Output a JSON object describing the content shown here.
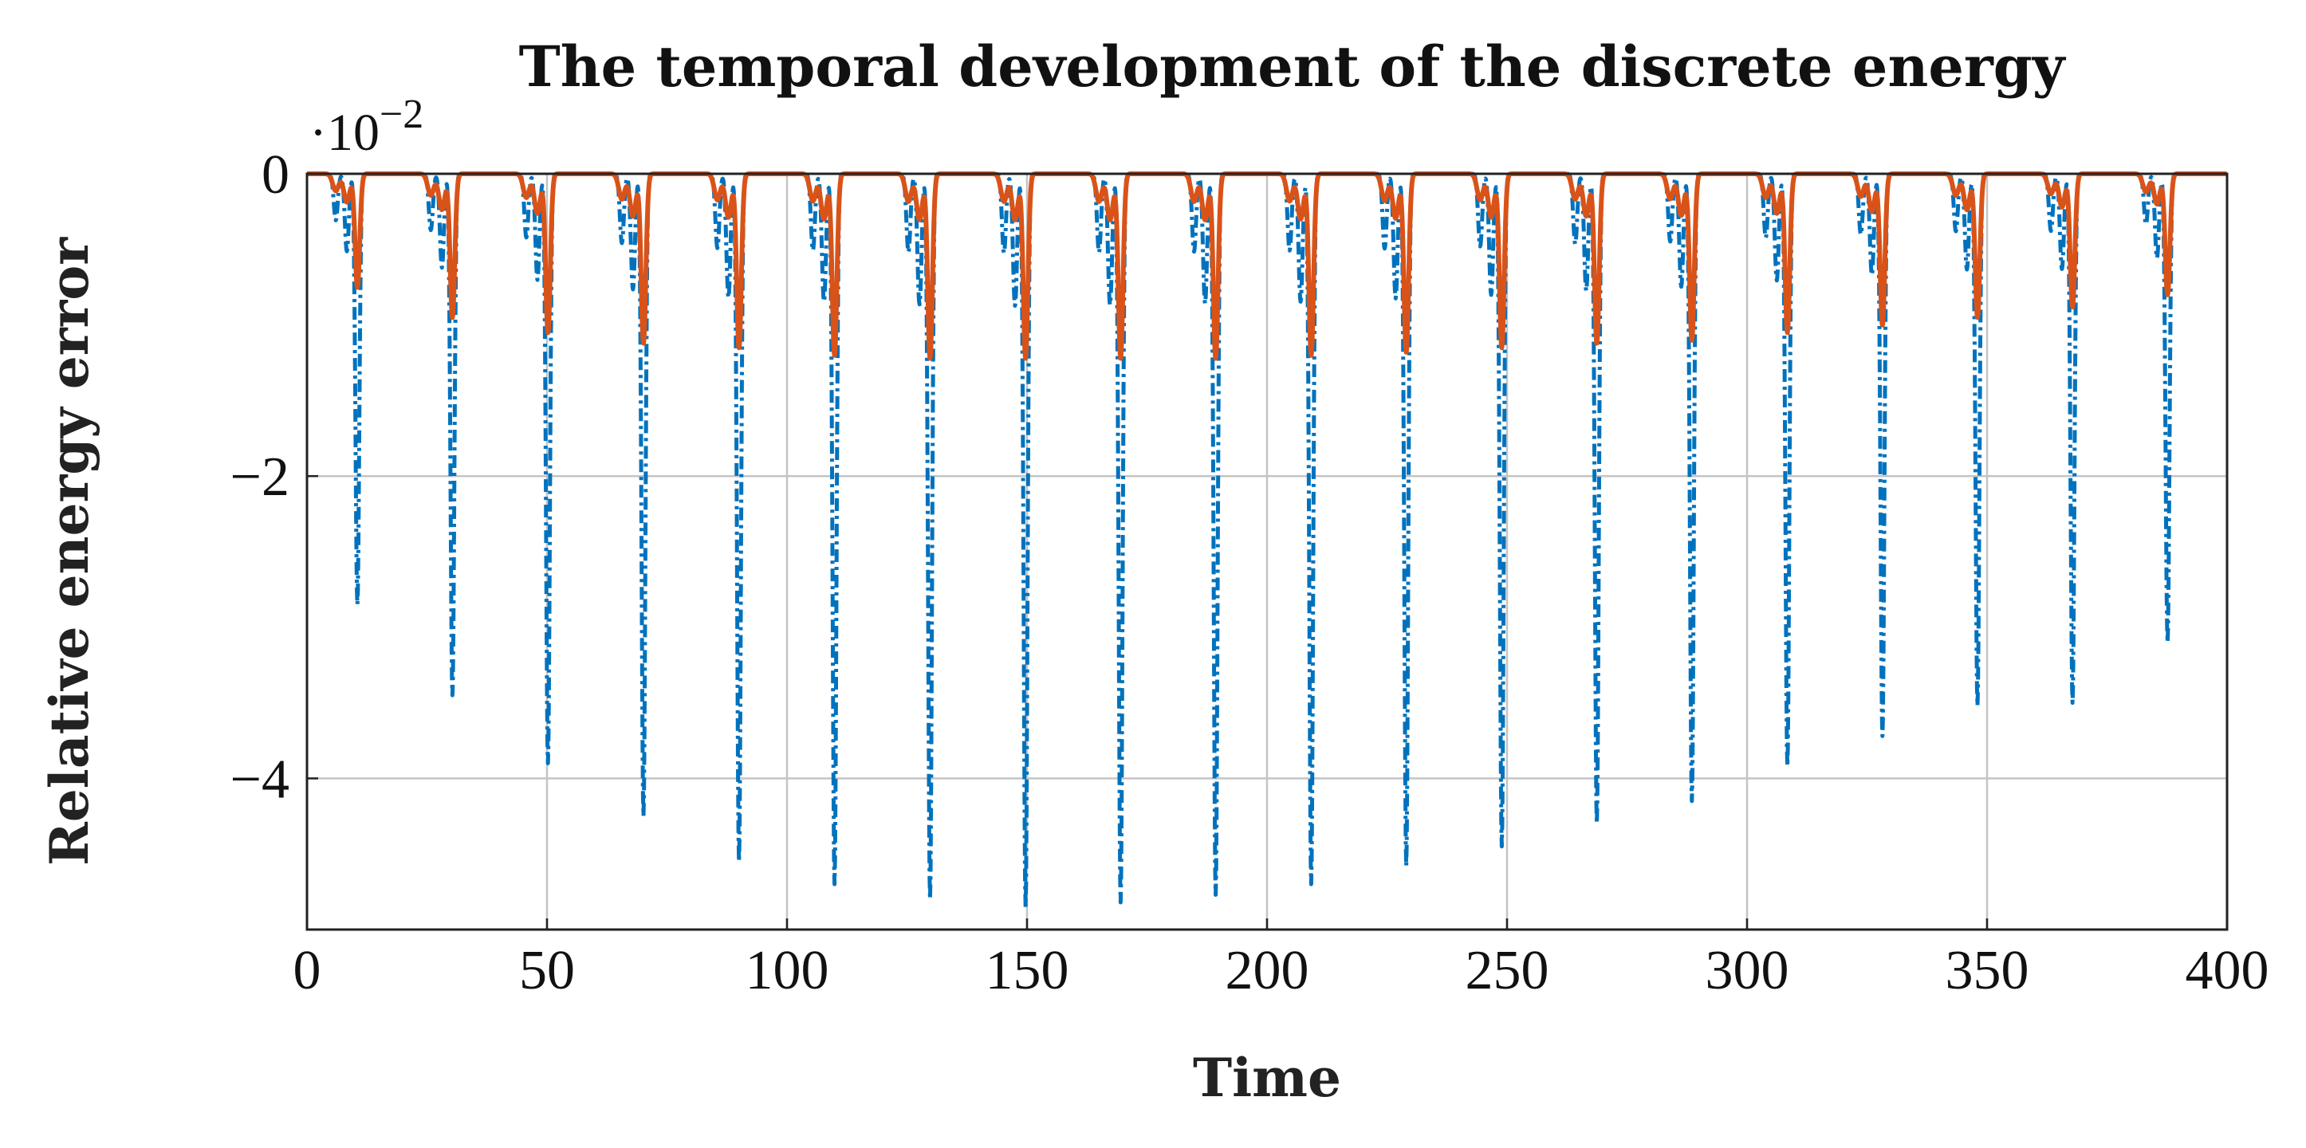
{
  "chart_data": {
    "type": "line",
    "title": "The temporal development of the discrete energy",
    "xlabel": "Time",
    "ylabel": "Relative energy error",
    "xlim": [
      0,
      400
    ],
    "ylim": [
      -5,
      0
    ],
    "y_multiplier": {
      "base": "·10",
      "exponent": "−2"
    },
    "grid": true,
    "x_ticks": [
      0,
      50,
      100,
      150,
      200,
      250,
      300,
      350,
      400
    ],
    "x_tick_labels": [
      "0",
      "50",
      "100",
      "150",
      "200",
      "250",
      "300",
      "350",
      "400"
    ],
    "y_ticks": [
      0,
      -2,
      -4
    ],
    "y_tick_labels": [
      "0",
      "−2",
      "−4"
    ],
    "series": [
      {
        "name": "dash-dot blue",
        "color": "#0072BD",
        "style": "dashdot",
        "spike_times": [
          10.5,
          30.3,
          50.2,
          70.1,
          90,
          109.9,
          129.8,
          149.7,
          169.5,
          189.3,
          209.2,
          229,
          248.9,
          268.7,
          288.5,
          308.4,
          328.2,
          348,
          367.8,
          387.6
        ],
        "spike_depths": [
          -2.85,
          -3.45,
          -3.9,
          -4.25,
          -4.55,
          -4.7,
          -4.8,
          -4.85,
          -4.82,
          -4.77,
          -4.7,
          -4.58,
          -4.45,
          -4.3,
          -4.15,
          -3.92,
          -3.72,
          -3.52,
          -3.5,
          -3.1
        ]
      },
      {
        "name": "solid orange",
        "color": "#D95319",
        "style": "solid",
        "spike_times": [
          10.5,
          30.3,
          50.2,
          70.1,
          90,
          109.9,
          129.8,
          149.7,
          169.5,
          189.3,
          209.2,
          229,
          248.9,
          268.7,
          288.5,
          308.4,
          328.2,
          348,
          367.8,
          387.6
        ],
        "spike_depths": [
          -0.75,
          -0.95,
          -1.05,
          -1.12,
          -1.15,
          -1.2,
          -1.22,
          -1.22,
          -1.22,
          -1.22,
          -1.2,
          -1.18,
          -1.15,
          -1.12,
          -1.1,
          -1.05,
          -1.0,
          -0.95,
          -0.88,
          -0.8
        ]
      }
    ]
  }
}
